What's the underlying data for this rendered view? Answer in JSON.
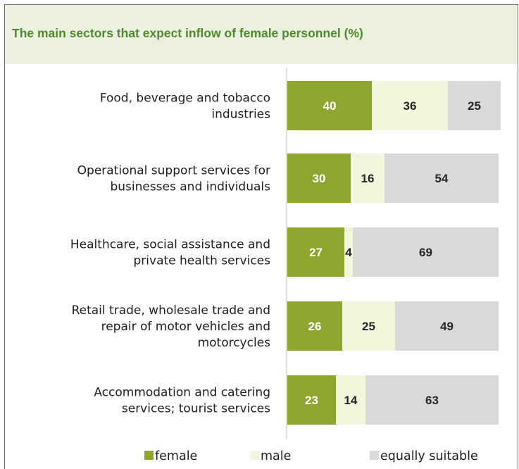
{
  "chart_data": {
    "type": "bar",
    "orientation": "horizontal",
    "stacked": true,
    "title": "The main sectors that expect inflow of female personnel (%)",
    "categories": [
      [
        "Food, beverage and tobacco",
        "industries"
      ],
      [
        "Operational support services for",
        "businesses and individuals"
      ],
      [
        "Healthcare, social assistance and",
        "private health services"
      ],
      [
        "Retail trade, wholesale trade and",
        "repair of motor vehicles and",
        "motorcycles"
      ],
      [
        "Accommodation and catering",
        "services; tourist services"
      ]
    ],
    "series": [
      {
        "name": "female",
        "color": "#8ea62e",
        "label_color": "#ffffff",
        "values": [
          40,
          30,
          27,
          26,
          23
        ]
      },
      {
        "name": "male",
        "color": "#f2f6dc",
        "label_color": "#262626",
        "values": [
          36,
          16,
          4,
          25,
          14
        ]
      },
      {
        "name": "equally suitable",
        "color": "#d9d9d9",
        "label_color": "#262626",
        "values": [
          25,
          54,
          69,
          49,
          63
        ]
      }
    ],
    "xlim": [
      0,
      100
    ],
    "grid": false,
    "legend": "bottom"
  }
}
